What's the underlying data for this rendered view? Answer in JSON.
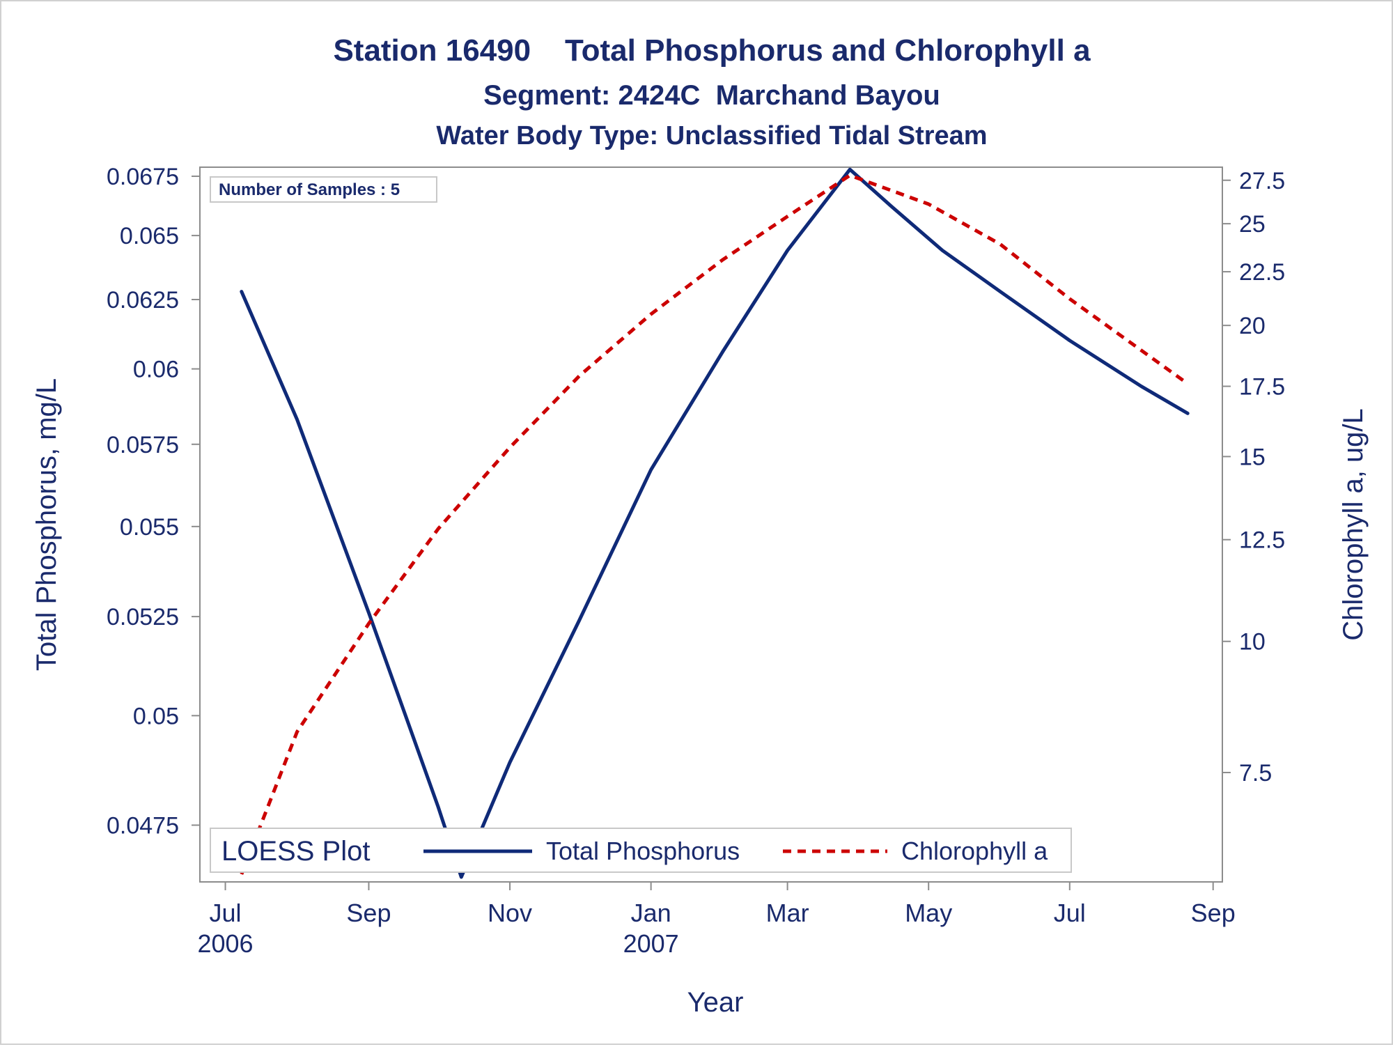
{
  "colors": {
    "text": "#1a2a6c",
    "phosphorus": "#0f2a78",
    "chlorophyll": "#cc0000",
    "axis": "#8c8c8c",
    "legend_border": "#c8c8c8"
  },
  "chart_data": {
    "type": "line",
    "title": "Station 16490    Total Phosphorus and Chlorophyll a",
    "subtitle": "Segment: 2424C  Marchand Bayou",
    "subtitle2": "Water Body Type: Unclassified Tidal Stream",
    "xlabel": "Year",
    "ylabel_left": "Total Phosphorus, mg/L",
    "ylabel_right": "Chlorophyll a, ug/L",
    "inset_text": "Number of Samples : 5",
    "x_ticks": [
      {
        "date": "2006-07-01",
        "label": "Jul",
        "year": "2006"
      },
      {
        "date": "2006-09-01",
        "label": "Sep",
        "year": ""
      },
      {
        "date": "2006-11-01",
        "label": "Nov",
        "year": ""
      },
      {
        "date": "2007-01-01",
        "label": "Jan",
        "year": "2007"
      },
      {
        "date": "2007-03-01",
        "label": "Mar",
        "year": ""
      },
      {
        "date": "2007-05-01",
        "label": "May",
        "year": ""
      },
      {
        "date": "2007-07-01",
        "label": "Jul",
        "year": ""
      },
      {
        "date": "2007-09-01",
        "label": "Sep",
        "year": ""
      }
    ],
    "xlim": [
      "2006-06-20",
      "2007-09-05"
    ],
    "y_left_ticks": [
      "0.0475",
      "0.05",
      "0.0525",
      "0.055",
      "0.0575",
      "0.06",
      "0.0625",
      "0.065",
      "0.0675"
    ],
    "y_left_scale": "reciprocal",
    "ylim_left": [
      0.0463,
      0.0679
    ],
    "y_right_ticks": [
      "7.5",
      "10",
      "12.5",
      "15",
      "17.5",
      "20",
      "22.5",
      "25",
      "27.5"
    ],
    "y_right_scale": "log",
    "ylim_right": [
      5.9,
      28.3
    ],
    "legend": {
      "title": "LOESS Plot",
      "position": "bottom-inside"
    },
    "series": [
      {
        "name": "Total Phosphorus",
        "axis": "left",
        "style": "solid",
        "points": [
          {
            "x": "2006-07-08",
            "y": 0.0628
          },
          {
            "x": "2006-08-01",
            "y": 0.0583
          },
          {
            "x": "2006-09-01",
            "y": 0.0526
          },
          {
            "x": "2006-10-01",
            "y": 0.0479
          },
          {
            "x": "2006-10-11",
            "y": 0.0464
          },
          {
            "x": "2006-11-01",
            "y": 0.0489
          },
          {
            "x": "2006-12-01",
            "y": 0.0524
          },
          {
            "x": "2007-01-01",
            "y": 0.0567
          },
          {
            "x": "2007-02-01",
            "y": 0.0606
          },
          {
            "x": "2007-03-01",
            "y": 0.0644
          },
          {
            "x": "2007-03-28",
            "y": 0.0678
          },
          {
            "x": "2007-04-15",
            "y": 0.0662
          },
          {
            "x": "2007-05-07",
            "y": 0.0644
          },
          {
            "x": "2007-06-01",
            "y": 0.0628
          },
          {
            "x": "2007-07-01",
            "y": 0.061
          },
          {
            "x": "2007-08-01",
            "y": 0.0594
          },
          {
            "x": "2007-08-21",
            "y": 0.0585
          }
        ]
      },
      {
        "name": "Chlorophyll a",
        "axis": "right",
        "style": "dashed",
        "points": [
          {
            "x": "2006-07-08",
            "y": 6.0
          },
          {
            "x": "2006-08-01",
            "y": 8.2
          },
          {
            "x": "2006-09-01",
            "y": 10.4
          },
          {
            "x": "2006-10-01",
            "y": 12.8
          },
          {
            "x": "2006-11-01",
            "y": 15.3
          },
          {
            "x": "2006-12-01",
            "y": 17.9
          },
          {
            "x": "2007-01-01",
            "y": 20.5
          },
          {
            "x": "2007-02-01",
            "y": 23.1
          },
          {
            "x": "2007-03-01",
            "y": 25.4
          },
          {
            "x": "2007-03-28",
            "y": 27.8
          },
          {
            "x": "2007-05-01",
            "y": 26.1
          },
          {
            "x": "2007-06-01",
            "y": 23.9
          },
          {
            "x": "2007-07-01",
            "y": 21.2
          },
          {
            "x": "2007-08-21",
            "y": 17.6
          }
        ]
      }
    ]
  }
}
